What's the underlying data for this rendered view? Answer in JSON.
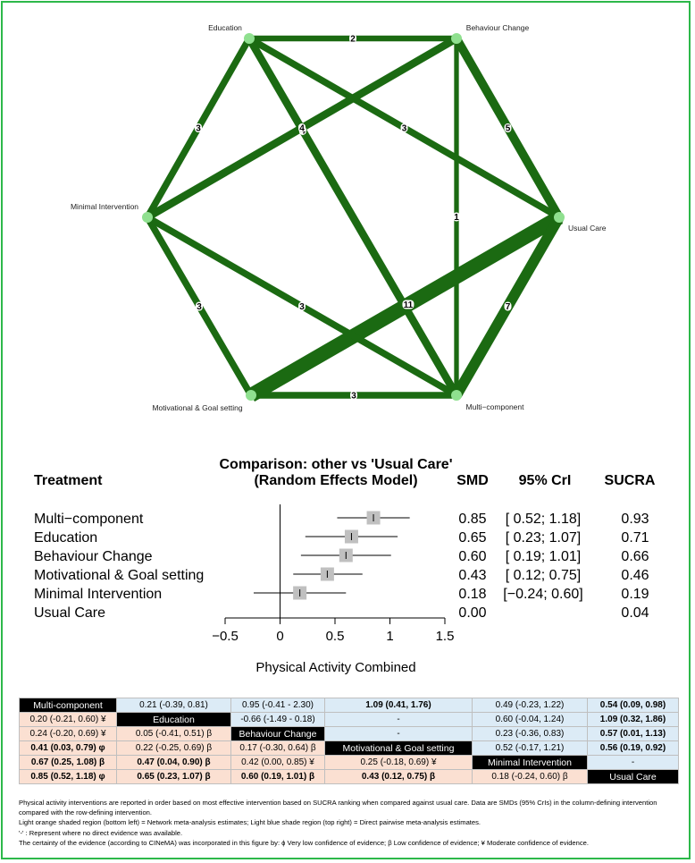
{
  "network": {
    "nodes": [
      {
        "id": "edu",
        "label": "Education"
      },
      {
        "id": "bc",
        "label": "Behaviour Change"
      },
      {
        "id": "uc",
        "label": "Usual Care"
      },
      {
        "id": "mc",
        "label": "Multi−component"
      },
      {
        "id": "mg",
        "label": "Motivational & Goal setting"
      },
      {
        "id": "mi",
        "label": "Minimal Intervention"
      }
    ],
    "edges": [
      {
        "a": "edu",
        "b": "bc",
        "n": "2"
      },
      {
        "a": "edu",
        "b": "mi",
        "n": "3"
      },
      {
        "a": "edu",
        "b": "uc",
        "n": "3"
      },
      {
        "a": "edu",
        "b": "mc",
        "n": "4"
      },
      {
        "a": "bc",
        "b": "uc",
        "n": "5"
      },
      {
        "a": "bc",
        "b": "mc",
        "n": "1"
      },
      {
        "a": "bc",
        "b": "mi",
        "n": "4"
      },
      {
        "a": "uc",
        "b": "mg",
        "n": "11"
      },
      {
        "a": "uc",
        "b": "mc",
        "n": "7"
      },
      {
        "a": "mi",
        "b": "mg",
        "n": "3"
      },
      {
        "a": "mi",
        "b": "mc",
        "n": "3"
      },
      {
        "a": "mg",
        "b": "mc",
        "n": "3"
      }
    ],
    "colors": {
      "edge": "#1b6a12",
      "node": "#8fe08f"
    }
  },
  "chart_data": {
    "type": "forest",
    "title": "Comparison: other vs 'Usual Care'",
    "subtitle": "(Random Effects Model)",
    "column_headers": {
      "treatment": "Treatment",
      "smd": "SMD",
      "cri": "95% CrI",
      "sucra": "SUCRA"
    },
    "xlabel": "Physical Activity Combined",
    "xlim": [
      -0.5,
      1.5
    ],
    "xticks": [
      "−0.5",
      "0",
      "0.5",
      "1",
      "1.5"
    ],
    "xtick_values": [
      -0.5,
      0,
      0.5,
      1,
      1.5
    ],
    "rows": [
      {
        "treatment": "Multi−component",
        "smd": 0.85,
        "lo": 0.52,
        "hi": 1.18,
        "smd_text": "0.85",
        "cri_text": "[ 0.52; 1.18]",
        "sucra": "0.93"
      },
      {
        "treatment": "Education",
        "smd": 0.65,
        "lo": 0.23,
        "hi": 1.07,
        "smd_text": "0.65",
        "cri_text": "[ 0.23; 1.07]",
        "sucra": "0.71"
      },
      {
        "treatment": "Behaviour Change",
        "smd": 0.6,
        "lo": 0.19,
        "hi": 1.01,
        "smd_text": "0.60",
        "cri_text": "[ 0.19; 1.01]",
        "sucra": "0.66"
      },
      {
        "treatment": "Motivational & Goal setting",
        "smd": 0.43,
        "lo": 0.12,
        "hi": 0.75,
        "smd_text": "0.43",
        "cri_text": "[ 0.12; 0.75]",
        "sucra": "0.46"
      },
      {
        "treatment": "Minimal Intervention",
        "smd": 0.18,
        "lo": -0.24,
        "hi": 0.6,
        "smd_text": "0.18",
        "cri_text": "[−0.24; 0.60]",
        "sucra": "0.19"
      },
      {
        "treatment": "Usual Care",
        "smd": null,
        "lo": null,
        "hi": null,
        "smd_text": "0.00",
        "cri_text": "",
        "sucra": "0.04"
      }
    ]
  },
  "league_table": {
    "rows": [
      [
        {
          "t": "Multi-component",
          "k": "diag"
        },
        {
          "t": "0.21 (-0.39, 0.81)",
          "k": "direct"
        },
        {
          "t": "0.95 (-0.41 -  2.30)",
          "k": "direct"
        },
        {
          "t": "1.09 (0.41, 1.76)",
          "k": "direct",
          "b": true
        },
        {
          "t": "0.49 (-0.23, 1.22)",
          "k": "direct"
        },
        {
          "t": "0.54 (0.09, 0.98)",
          "k": "direct",
          "b": true
        }
      ],
      [
        {
          "t": "0.20 (-0.21, 0.60) ¥",
          "k": "nma"
        },
        {
          "t": "Education",
          "k": "diag"
        },
        {
          "t": "-0.66 (-1.49 -  0.18)",
          "k": "direct"
        },
        {
          "t": "-",
          "k": "direct"
        },
        {
          "t": "0.60 (-0.04, 1.24)",
          "k": "direct"
        },
        {
          "t": "1.09 (0.32, 1.86)",
          "k": "direct",
          "b": true
        }
      ],
      [
        {
          "t": "0.24 (-0.20, 0.69) ¥",
          "k": "nma"
        },
        {
          "t": "0.05 (-0.41, 0.51) β",
          "k": "nma"
        },
        {
          "t": "Behaviour Change",
          "k": "diag"
        },
        {
          "t": "-",
          "k": "direct"
        },
        {
          "t": "0.23 (-0.36, 0.83)",
          "k": "direct"
        },
        {
          "t": "0.57 (0.01, 1.13)",
          "k": "direct",
          "b": true
        }
      ],
      [
        {
          "t": "0.41 (0.03, 0.79) φ",
          "k": "nma",
          "b": true
        },
        {
          "t": "0.22 (-0.25, 0.69) β",
          "k": "nma"
        },
        {
          "t": "0.17 (-0.30, 0.64) β",
          "k": "nma"
        },
        {
          "t": "Motivational & Goal setting",
          "k": "diag"
        },
        {
          "t": "0.52 (-0.17, 1.21)",
          "k": "direct"
        },
        {
          "t": "0.56 (0.19, 0.92)",
          "k": "direct",
          "b": true
        }
      ],
      [
        {
          "t": "0.67 (0.25, 1.08) β",
          "k": "nma",
          "b": true
        },
        {
          "t": "0.47 (0.04, 0.90) β",
          "k": "nma",
          "b": true
        },
        {
          "t": "0.42 (0.00, 0.85) ¥",
          "k": "nma"
        },
        {
          "t": "0.25 (-0.18, 0.69) ¥",
          "k": "nma"
        },
        {
          "t": "Minimal Intervention",
          "k": "diag"
        },
        {
          "t": "-",
          "k": "direct"
        }
      ],
      [
        {
          "t": "0.85 (0.52, 1.18) φ",
          "k": "nma",
          "b": true
        },
        {
          "t": "0.65 (0.23, 1.07) β",
          "k": "nma",
          "b": true
        },
        {
          "t": "0.60 (0.19, 1.01) β",
          "k": "nma",
          "b": true
        },
        {
          "t": "0.43 (0.12, 0.75) β",
          "k": "nma",
          "b": true
        },
        {
          "t": "0.18 (-0.24, 0.60) β",
          "k": "nma"
        },
        {
          "t": "Usual Care",
          "k": "diag"
        }
      ]
    ],
    "colors": {
      "nma": "#fbe0d2",
      "direct": "#dcebf6",
      "diag": "#000000"
    }
  },
  "notes": [
    "Physical activity interventions are reported in order based on most effective intervention based on SUCRA ranking when compared against usual care. Data are SMDs (95% CrIs) in the column-defining intervention",
    "compared with the row-defining intervention.",
    "Light orange shaded region (bottom left) = Network meta-analysis estimates; Light blue shade region (top right) = Direct pairwise meta-analysis estimates.",
    "'-' : Represent where no direct evidence was available.",
    "The certainty of the evidence (according to CINeMA) was incorporated in this figure by: ϕ Very low confidence of evidence; β Low confidence of evidence; ¥ Moderate confidence of evidence."
  ]
}
